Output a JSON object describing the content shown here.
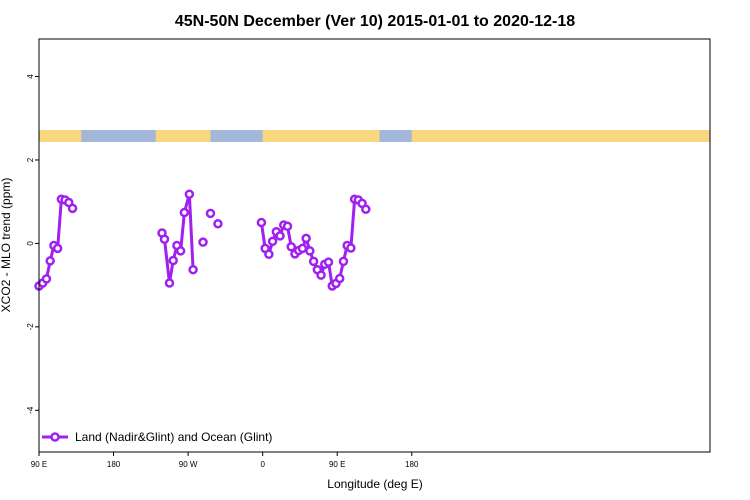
{
  "chart_data": {
    "type": "line",
    "title": "45N-50N December (Ver 10)   2015-01-01 to 2020-12-18",
    "xlabel": "Longitude (deg E)",
    "ylabel": "XCO2 - MLO trend (ppm)",
    "xlim": [
      -90,
      180
    ],
    "ylim": [
      -5,
      4.9
    ],
    "x_ticks": [
      {
        "value": -90,
        "label": "90 E"
      },
      {
        "value": -60,
        "label": "180"
      },
      {
        "value": -30,
        "label": "90 W"
      },
      {
        "value": 0,
        "label": "0"
      },
      {
        "value": 30,
        "label": "90 E"
      },
      {
        "value": 60,
        "label": "180"
      }
    ],
    "y_ticks": [
      {
        "value": -4,
        "label": "-4"
      },
      {
        "value": -2,
        "label": "-2"
      },
      {
        "value": 0,
        "label": "0"
      },
      {
        "value": 2,
        "label": "2"
      },
      {
        "value": 4,
        "label": "4"
      }
    ],
    "legend": {
      "position": "bottom-left",
      "label": "Land (Nadir&Glint) and Ocean (Glint)"
    },
    "colors": {
      "series": "#a020f0",
      "land": "#f9d77e",
      "ocean": "#a3b8d8"
    },
    "land_mask_lon_ranges": [
      [
        -90,
        -73
      ],
      [
        -43,
        -21
      ],
      [
        0,
        47
      ],
      [
        60,
        180
      ]
    ],
    "series": [
      {
        "name": "Land (Nadir&Glint) and Ocean (Glint)",
        "segments": [
          [
            {
              "x": -90,
              "y": -1.02
            },
            {
              "x": -88.5,
              "y": -0.95
            },
            {
              "x": -87,
              "y": -0.85
            },
            {
              "x": -85.5,
              "y": -0.42
            },
            {
              "x": -84,
              "y": -0.05
            },
            {
              "x": -82.5,
              "y": -0.12
            },
            {
              "x": -81,
              "y": 1.06
            },
            {
              "x": -79.5,
              "y": 1.04
            },
            {
              "x": -78,
              "y": 0.98
            },
            {
              "x": -76.5,
              "y": 0.84
            }
          ],
          [
            {
              "x": -40.5,
              "y": 0.25
            },
            {
              "x": -39.5,
              "y": 0.1
            },
            {
              "x": -37.5,
              "y": -0.95
            },
            {
              "x": -36,
              "y": -0.41
            },
            {
              "x": -34.5,
              "y": -0.05
            },
            {
              "x": -33,
              "y": -0.18
            },
            {
              "x": -31.5,
              "y": 0.74
            },
            {
              "x": -29.5,
              "y": 1.18
            },
            {
              "x": -28,
              "y": -0.63
            }
          ],
          [
            {
              "x": -24,
              "y": 0.03
            }
          ],
          [
            {
              "x": -21,
              "y": 0.72
            }
          ],
          [
            {
              "x": -18,
              "y": 0.47
            }
          ],
          [
            {
              "x": -0.5,
              "y": 0.5
            },
            {
              "x": 1,
              "y": -0.12
            },
            {
              "x": 2.5,
              "y": -0.26
            },
            {
              "x": 4,
              "y": 0.05
            },
            {
              "x": 5.5,
              "y": 0.28
            },
            {
              "x": 7,
              "y": 0.18
            },
            {
              "x": 8.5,
              "y": 0.44
            },
            {
              "x": 10,
              "y": 0.41
            },
            {
              "x": 11.5,
              "y": -0.08
            },
            {
              "x": 13,
              "y": -0.25
            },
            {
              "x": 14.5,
              "y": -0.17
            },
            {
              "x": 16,
              "y": -0.12
            },
            {
              "x": 17.5,
              "y": 0.12
            },
            {
              "x": 19,
              "y": -0.18
            },
            {
              "x": 20.5,
              "y": -0.43
            },
            {
              "x": 22,
              "y": -0.63
            },
            {
              "x": 23.5,
              "y": -0.76
            },
            {
              "x": 25,
              "y": -0.5
            },
            {
              "x": 26.5,
              "y": -0.45
            },
            {
              "x": 28,
              "y": -1.02
            },
            {
              "x": 29.5,
              "y": -0.96
            },
            {
              "x": 31,
              "y": -0.84
            },
            {
              "x": 32.5,
              "y": -0.43
            },
            {
              "x": 34,
              "y": -0.05
            },
            {
              "x": 35.5,
              "y": -0.11
            },
            {
              "x": 37,
              "y": 1.06
            },
            {
              "x": 38.5,
              "y": 1.04
            },
            {
              "x": 40,
              "y": 0.96
            },
            {
              "x": 41.5,
              "y": 0.82
            }
          ]
        ]
      }
    ]
  }
}
